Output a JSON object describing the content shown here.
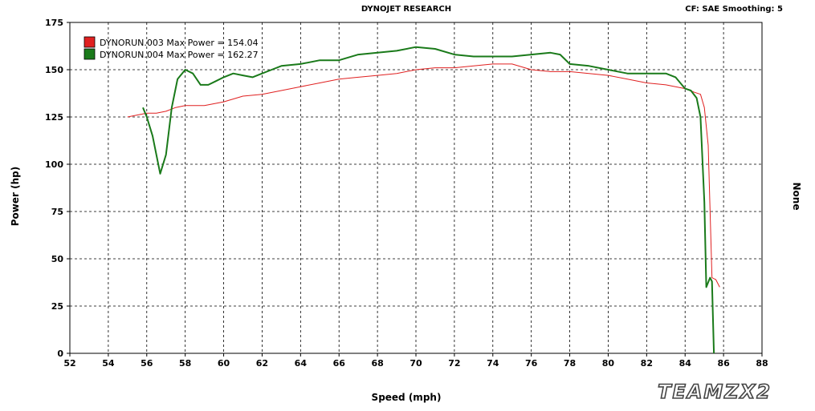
{
  "header": {
    "title": "DYNOJET RESEARCH",
    "settings": "CF: SAE  Smoothing: 5"
  },
  "watermark": "TEAMZX2",
  "chart_data": {
    "type": "line",
    "xlabel": "Speed (mph)",
    "ylabel": "Power (hp)",
    "y2label": "None",
    "xlim": [
      52,
      88
    ],
    "ylim": [
      0,
      175
    ],
    "x_ticks": [
      52,
      54,
      56,
      58,
      60,
      62,
      64,
      66,
      68,
      70,
      72,
      74,
      76,
      78,
      80,
      82,
      84,
      86,
      88
    ],
    "y_ticks": [
      0,
      25,
      50,
      75,
      100,
      125,
      150,
      175
    ],
    "grid": true,
    "legend_position": "top-left",
    "series": [
      {
        "name": "DYNORUN.003 Max Power = 154.04",
        "color": "#e02020",
        "x": [
          55,
          55.5,
          56,
          56.5,
          57,
          57.5,
          58,
          59,
          60,
          61,
          62,
          63,
          64,
          65,
          66,
          67,
          68,
          69,
          70,
          71,
          72,
          73,
          74,
          75,
          76,
          77,
          78,
          79,
          80,
          81,
          82,
          83,
          84,
          84.5,
          84.8,
          85,
          85.2,
          85.4,
          85.6,
          85.8
        ],
        "y": [
          125,
          126,
          127,
          127,
          128,
          130,
          131,
          131,
          133,
          136,
          137,
          139,
          141,
          143,
          145,
          146,
          147,
          148,
          150,
          151,
          151,
          152,
          153,
          153,
          150,
          149,
          149,
          148,
          147,
          145,
          143,
          142,
          140,
          138,
          137,
          130,
          110,
          40,
          39,
          35
        ]
      },
      {
        "name": "DYNORUN.004 Max Power = 162.27",
        "color": "#1a7a1a",
        "x": [
          55.8,
          56,
          56.3,
          56.7,
          57,
          57.3,
          57.6,
          58,
          58.4,
          58.8,
          59.2,
          59.6,
          60,
          60.5,
          61,
          61.5,
          62,
          62.5,
          63,
          64,
          65,
          66,
          67,
          68,
          69,
          70,
          71,
          72,
          73,
          74,
          75,
          76,
          77,
          77.5,
          78,
          79,
          80,
          81,
          82,
          83,
          83.5,
          84,
          84.3,
          84.6,
          84.8,
          85,
          85.1,
          85.3,
          85.4,
          85.5
        ],
        "y": [
          130,
          125,
          115,
          95,
          105,
          130,
          145,
          150,
          148,
          142,
          142,
          144,
          146,
          148,
          147,
          146,
          148,
          150,
          152,
          153,
          155,
          155,
          158,
          159,
          160,
          162,
          161,
          158,
          157,
          157,
          157,
          158,
          159,
          158,
          153,
          152,
          150,
          148,
          148,
          148,
          146,
          140,
          139,
          135,
          125,
          80,
          35,
          40,
          38,
          0
        ]
      }
    ]
  }
}
